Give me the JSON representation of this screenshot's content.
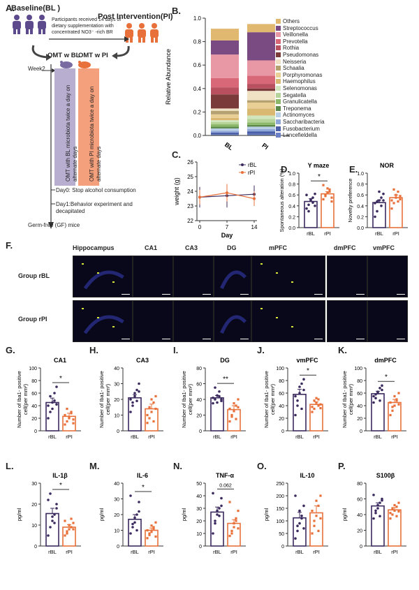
{
  "panels": {
    "A": "A.",
    "B": "B.",
    "C": "C.",
    "D": "D.",
    "E": "E.",
    "F": "F.",
    "G": "G.",
    "H": "H.",
    "I": "I.",
    "J": "J.",
    "K": "K.",
    "L": "L.",
    "M": "M.",
    "N": "N.",
    "O": "O.",
    "P": "P."
  },
  "panelA": {
    "baseline": "Baseline(BL )",
    "post": "Post Intervention(PI)",
    "arrow_note_1": "Participants received 14 days of",
    "arrow_note_2": "dietary supplementation with",
    "arrow_note_3": "concentrated NO3⁻ -rich BR",
    "omt_bl": "OMT w BL",
    "omt_pi": "OMT w PI",
    "week2": "Week2",
    "bar_bl": "OMT with BL microbiota twice a day on alternate days",
    "bar_pi": "OMT with PI microbiota twice a day on alternate days",
    "day0": "Day0: Stop alcohol consumption",
    "day1a": "Day1:Behavior experiment and",
    "day1b": "decapitated",
    "gf": "Germ-free (GF) mice"
  },
  "chart_data": [
    {
      "id": "B",
      "type": "bar",
      "stacked": true,
      "ylabel": "Relative Abundance",
      "ylim": [
        0,
        1.0
      ],
      "yticks": [
        "0.0",
        "0.2",
        "0.4",
        "0.6",
        "0.8",
        "1.0"
      ],
      "categories": [
        "BL",
        "PI"
      ],
      "series": [
        {
          "name": "Lancefieldella",
          "color": "#6b7fc4",
          "values": [
            0.01,
            0.015
          ]
        },
        {
          "name": "Fusobacterium",
          "color": "#4a5fa8",
          "values": [
            0.015,
            0.02
          ]
        },
        {
          "name": "Saccharibacteria",
          "color": "#8fa8d8",
          "values": [
            0.015,
            0.02
          ]
        },
        {
          "name": "Actinomyces",
          "color": "#b8cfe6",
          "values": [
            0.02,
            0.02
          ]
        },
        {
          "name": "Treponema",
          "color": "#5c8a4a",
          "values": [
            0.015,
            0.015
          ]
        },
        {
          "name": "Granulicatella",
          "color": "#8cb86a",
          "values": [
            0.02,
            0.02
          ]
        },
        {
          "name": "Segatella",
          "color": "#b6d49a",
          "values": [
            0.02,
            0.03
          ]
        },
        {
          "name": "Selenomonas",
          "color": "#d2e6bd",
          "values": [
            0.015,
            0.03
          ]
        },
        {
          "name": "Haemophilus",
          "color": "#d9b872",
          "values": [
            0.02,
            0.06
          ]
        },
        {
          "name": "Porphyromonas",
          "color": "#e9cf96",
          "values": [
            0.03,
            0.05
          ]
        },
        {
          "name": "Schaalia",
          "color": "#b5a070",
          "values": [
            0.03,
            0.02
          ]
        },
        {
          "name": "Neisseria",
          "color": "#f0e0c4",
          "values": [
            0.02,
            0.08
          ]
        },
        {
          "name": "Pseudomonas",
          "color": "#7a3a3a",
          "values": [
            0.12,
            0.02
          ]
        },
        {
          "name": "Rothia",
          "color": "#b85060",
          "values": [
            0.06,
            0.04
          ]
        },
        {
          "name": "Prevotella",
          "color": "#d86878",
          "values": [
            0.08,
            0.07
          ]
        },
        {
          "name": "Veillonella",
          "color": "#e898a4",
          "values": [
            0.2,
            0.13
          ]
        },
        {
          "name": "Streptococcus",
          "color": "#7a4a82",
          "values": [
            0.12,
            0.24
          ]
        },
        {
          "name": "Others",
          "color": "#e0b870",
          "values": [
            0.1,
            0.07
          ]
        }
      ]
    },
    {
      "id": "C",
      "type": "line",
      "xlabel": "Day",
      "ylabel": "weight (g)",
      "ylim": [
        22,
        26
      ],
      "yticks": [
        "22",
        "23",
        "24",
        "25",
        "26"
      ],
      "x": [
        0,
        7,
        14
      ],
      "series": [
        {
          "name": "rBL",
          "color": "#3b2a5e",
          "values": [
            23.6,
            23.7,
            23.8
          ],
          "err": [
            0.7,
            0.8,
            0.6
          ]
        },
        {
          "name": "rPI",
          "color": "#e8703a",
          "values": [
            23.6,
            23.9,
            23.5
          ],
          "err": [
            0.5,
            0.6,
            0.5
          ]
        }
      ]
    },
    {
      "id": "D",
      "type": "bar",
      "title": "Y maze",
      "ylabel": "Spontaneous alteration (%)",
      "ylim": [
        0,
        1.0
      ],
      "yticks": [
        "0.0",
        "0.2",
        "0.4",
        "0.6",
        "0.8",
        "1.0"
      ],
      "categories": [
        "rBL",
        "rPI"
      ],
      "values": [
        0.48,
        0.62
      ],
      "err": [
        0.05,
        0.04
      ],
      "sig": "*",
      "points": [
        [
          0.35,
          0.42,
          0.5,
          0.55,
          0.4,
          0.6,
          0.3,
          0.52,
          0.46,
          0.62
        ],
        [
          0.52,
          0.6,
          0.72,
          0.66,
          0.55,
          0.78,
          0.58,
          0.64,
          0.7,
          0.48
        ]
      ]
    },
    {
      "id": "E",
      "type": "bar",
      "title": "NOR",
      "ylabel": "Novelty preference",
      "ylim": [
        0,
        1.0
      ],
      "yticks": [
        "0.0",
        "0.2",
        "0.4",
        "0.6",
        "0.8",
        "1.0"
      ],
      "categories": [
        "rBL",
        "rPI"
      ],
      "values": [
        0.46,
        0.55
      ],
      "err": [
        0.05,
        0.05
      ],
      "sig": "",
      "points": [
        [
          0.2,
          0.3,
          0.5,
          0.55,
          0.62,
          0.45,
          0.48,
          0.66,
          0.4,
          0.5
        ],
        [
          0.35,
          0.45,
          0.6,
          0.66,
          0.58,
          0.5,
          0.7,
          0.55,
          0.48,
          0.52
        ]
      ]
    },
    {
      "id": "G",
      "type": "bar",
      "title": "CA1",
      "ylabel": "Number of Iba1- positive\ncell(per mm²)",
      "ylim": [
        0,
        100
      ],
      "yticks": [
        "0",
        "20",
        "40",
        "60",
        "80",
        "100"
      ],
      "categories": [
        "rBL",
        "rPI"
      ],
      "values": [
        45,
        23
      ],
      "err": [
        7,
        5
      ],
      "sig": "*",
      "points": [
        [
          20,
          30,
          45,
          60,
          70,
          40,
          55,
          35,
          48,
          42
        ],
        [
          10,
          15,
          22,
          30,
          18,
          25,
          35,
          20,
          28,
          12
        ]
      ]
    },
    {
      "id": "H",
      "type": "bar",
      "title": "CA3",
      "ylabel": "Number of Iba1- positive\ncell(per mm²)",
      "ylim": [
        0,
        40
      ],
      "yticks": [
        "0",
        "10",
        "20",
        "30",
        "40"
      ],
      "categories": [
        "rBL",
        "rPI"
      ],
      "values": [
        21,
        14
      ],
      "err": [
        2,
        3
      ],
      "sig": "",
      "points": [
        [
          12,
          18,
          22,
          26,
          30,
          20,
          16,
          24,
          19,
          25
        ],
        [
          5,
          8,
          12,
          18,
          22,
          10,
          15,
          20,
          6,
          14
        ]
      ]
    },
    {
      "id": "I",
      "type": "bar",
      "title": "DG",
      "ylabel": "Number of Iba1- positive\ncell(per mm²)",
      "ylim": [
        0,
        80
      ],
      "yticks": [
        "0",
        "20",
        "40",
        "60",
        "80"
      ],
      "categories": [
        "rBL",
        "rPI"
      ],
      "values": [
        42,
        27
      ],
      "err": [
        3,
        5
      ],
      "sig": "**",
      "points": [
        [
          35,
          40,
          45,
          50,
          38,
          42,
          55,
          36,
          44,
          40
        ],
        [
          12,
          18,
          25,
          32,
          40,
          28,
          20,
          35,
          15,
          30
        ]
      ]
    },
    {
      "id": "J",
      "type": "bar",
      "title": "vmPFC",
      "ylabel": "Number of Iba1- positive\ncell(per mm²)",
      "ylim": [
        0,
        100
      ],
      "yticks": [
        "0",
        "20",
        "40",
        "60",
        "80",
        "100"
      ],
      "categories": [
        "rBL",
        "rPI"
      ],
      "values": [
        58,
        42
      ],
      "err": [
        8,
        4
      ],
      "sig": "*",
      "points": [
        [
          25,
          40,
          60,
          75,
          82,
          55,
          48,
          70,
          35,
          65
        ],
        [
          30,
          35,
          45,
          50,
          42,
          38,
          48,
          52,
          40,
          36
        ]
      ]
    },
    {
      "id": "K",
      "type": "bar",
      "title": "dmPFC",
      "ylabel": "Number of Iba1- positive\ncell(per mm²)",
      "ylim": [
        0,
        100
      ],
      "yticks": [
        "0",
        "20",
        "40",
        "60",
        "80",
        "100"
      ],
      "categories": [
        "rBL",
        "rPI"
      ],
      "values": [
        59,
        45
      ],
      "err": [
        4,
        5
      ],
      "sig": "*",
      "points": [
        [
          45,
          52,
          60,
          68,
          72,
          55,
          58,
          62,
          48,
          65
        ],
        [
          25,
          32,
          40,
          50,
          60,
          45,
          38,
          55,
          48,
          42
        ]
      ]
    },
    {
      "id": "L",
      "type": "bar",
      "title": "IL-1β",
      "ylabel": "pg/ml",
      "ylim": [
        0,
        30
      ],
      "yticks": [
        "0",
        "10",
        "20",
        "30"
      ],
      "categories": [
        "rBL",
        "rPI"
      ],
      "values": [
        15.5,
        9
      ],
      "err": [
        2.5,
        1.2
      ],
      "sig": "*",
      "points": [
        [
          5,
          9,
          12,
          15,
          18,
          22,
          25,
          14,
          11,
          20
        ],
        [
          5,
          6,
          8,
          9,
          11,
          12,
          7,
          10,
          13,
          8
        ]
      ]
    },
    {
      "id": "M",
      "type": "bar",
      "title": "IL-6",
      "ylabel": "pg/ml",
      "ylim": [
        0,
        40
      ],
      "yticks": [
        "0",
        "10",
        "20",
        "30",
        "40"
      ],
      "categories": [
        "rBL",
        "rPI"
      ],
      "values": [
        17,
        10
      ],
      "err": [
        3,
        1.5
      ],
      "sig": "*",
      "points": [
        [
          8,
          12,
          15,
          20,
          28,
          32,
          14,
          18,
          10,
          22
        ],
        [
          5,
          7,
          9,
          12,
          15,
          10,
          8,
          13,
          11,
          6
        ]
      ]
    },
    {
      "id": "N",
      "type": "bar",
      "title": "TNF-α",
      "ylabel": "pg/ml",
      "ylim": [
        0,
        50
      ],
      "yticks": [
        "0",
        "10",
        "20",
        "30",
        "40",
        "50"
      ],
      "categories": [
        "rBL",
        "rPI"
      ],
      "values": [
        27,
        18
      ],
      "err": [
        4,
        3
      ],
      "sig": "0.062",
      "points": [
        [
          10,
          18,
          25,
          30,
          38,
          42,
          20,
          28,
          24,
          32
        ],
        [
          8,
          10,
          15,
          20,
          28,
          35,
          12,
          18,
          22,
          14
        ]
      ]
    },
    {
      "id": "O",
      "type": "bar",
      "title": "IL-10",
      "ylabel": "pg/ml",
      "ylim": [
        0,
        250
      ],
      "yticks": [
        "0",
        "50",
        "100",
        "150",
        "200",
        "250"
      ],
      "categories": [
        "rBL",
        "rPI"
      ],
      "values": [
        112,
        132
      ],
      "err": [
        22,
        28
      ],
      "sig": "",
      "points": [
        [
          30,
          60,
          90,
          120,
          160,
          200,
          80,
          140,
          110,
          70
        ],
        [
          50,
          80,
          120,
          160,
          200,
          140,
          100,
          180,
          60,
          110
        ]
      ]
    },
    {
      "id": "P",
      "type": "bar",
      "title": "S100β",
      "ylabel": "pg/ml",
      "ylim": [
        0,
        80
      ],
      "yticks": [
        "0",
        "20",
        "40",
        "60",
        "80"
      ],
      "categories": [
        "rBL",
        "rPI"
      ],
      "values": [
        51,
        46
      ],
      "err": [
        4,
        3
      ],
      "sig": "",
      "points": [
        [
          35,
          42,
          48,
          55,
          60,
          65,
          45,
          52,
          38,
          58
        ],
        [
          35,
          40,
          45,
          50,
          55,
          42,
          48,
          52,
          38,
          44
        ]
      ]
    }
  ],
  "panelF": {
    "regions": [
      "Hippocampus",
      "CA1",
      "CA3",
      "DG",
      "mPFC",
      "dmPFC",
      "vmPFC"
    ],
    "rows": [
      "Group rBL",
      "Group rPI"
    ]
  },
  "colors": {
    "rBL": "#3b2a5e",
    "rPI": "#e8703a",
    "bar_bl": "#b7aed0",
    "bar_pi": "#f4a07c"
  }
}
